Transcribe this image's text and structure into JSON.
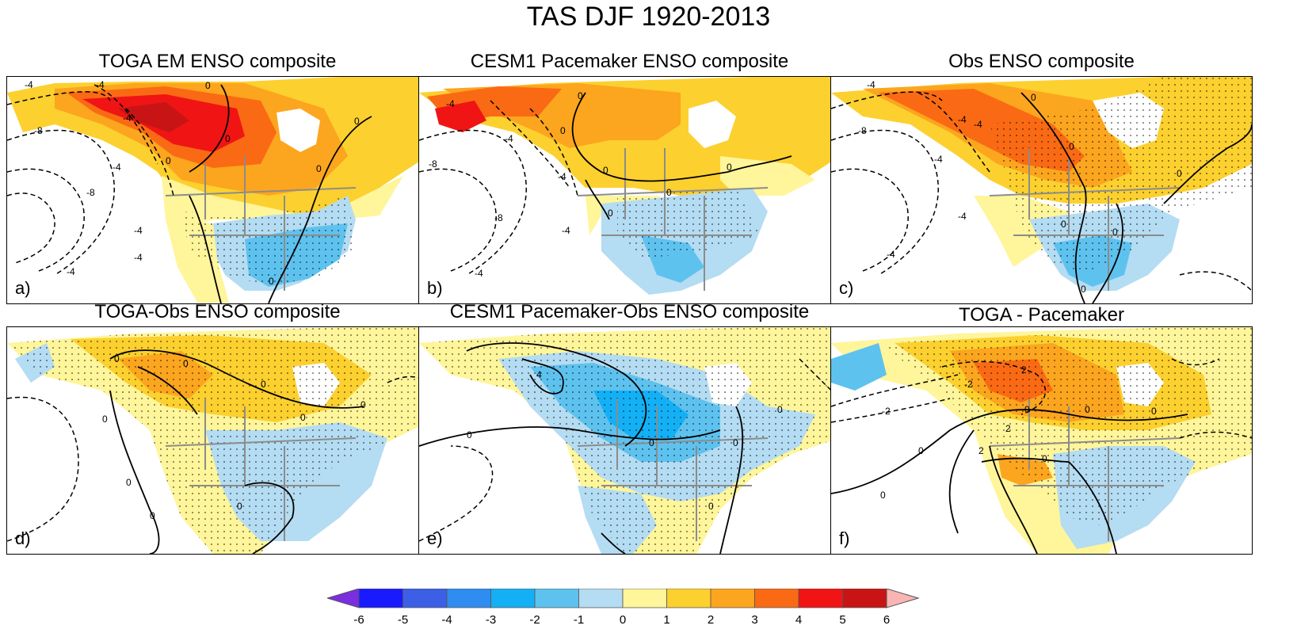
{
  "figure": {
    "title": "TAS DJF 1920-2013"
  },
  "panels": [
    {
      "title": "TOGA EM ENSO composite",
      "letter": "a)",
      "labels": [
        "-4",
        "-4",
        "-8",
        "-4",
        "-4",
        "-8",
        "-4",
        "-4",
        "0",
        "0",
        "0",
        "0",
        "0",
        "0",
        "-4"
      ]
    },
    {
      "title": "CESM1 Pacemaker ENSO composite",
      "letter": "b)",
      "labels": [
        "-4",
        "-8",
        "-4",
        "-8",
        "-4",
        "-4",
        "0",
        "0",
        "0",
        "0",
        "0",
        "0",
        "-4"
      ]
    },
    {
      "title": "Obs ENSO composite",
      "letter": "c)",
      "labels": [
        "-4",
        "-8",
        "-4",
        "-4",
        "-4",
        "-4",
        "0",
        "0",
        "0",
        "0",
        "0",
        "0",
        "-4"
      ]
    },
    {
      "title": "TOGA-Obs ENSO composite",
      "letter": "d)",
      "labels": [
        "0",
        "0",
        "0",
        "0",
        "0",
        "0",
        "0",
        "0",
        "0"
      ]
    },
    {
      "title": "CESM1 Pacemaker-Obs ENSO composite",
      "letter": "e)",
      "labels": [
        "4",
        "0",
        "0",
        "0",
        "0",
        "0"
      ]
    },
    {
      "title": "TOGA - Pacemaker",
      "letter": "f)",
      "labels": [
        "-2",
        "2",
        "0",
        "0",
        "0",
        "0",
        "0",
        "-2",
        "2",
        "2",
        "0"
      ]
    }
  ],
  "colorbar": {
    "levels": [
      "-6",
      "-5",
      "-4",
      "-3",
      "-2",
      "-1",
      "0",
      "1",
      "2",
      "3",
      "4",
      "5",
      "6"
    ],
    "colors": [
      "#7a2ee0",
      "#1a1aff",
      "#3c5fe6",
      "#2f8cf0",
      "#14b0f5",
      "#5ec2ef",
      "#b4dcf2",
      "#fff59a",
      "#fcd02e",
      "#fca51e",
      "#fa6a14",
      "#f01414",
      "#c81414",
      "#fab4b4"
    ]
  }
}
